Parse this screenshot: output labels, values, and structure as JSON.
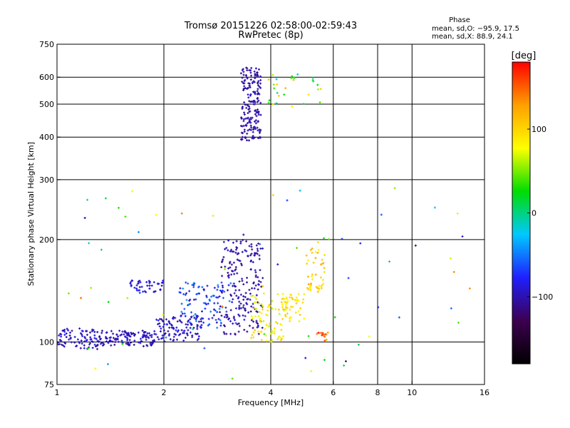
{
  "chart_data": {
    "type": "scatter",
    "title": "Tromsø 20151226 02:58:00-02:59:43",
    "subtitle": "RwPretec (8p)",
    "xlabel": "Frequency [MHz]",
    "ylabel": "Stationary phase Virtual Height [km]",
    "x_scale": "log",
    "y_scale": "log",
    "xlim": [
      1,
      16
    ],
    "ylim": [
      75,
      750
    ],
    "x_ticks": [
      1,
      2,
      4,
      6,
      8,
      10,
      16
    ],
    "x_tick_labels": [
      "1",
      "2",
      "4",
      "6",
      "8",
      "10",
      "16"
    ],
    "y_ticks": [
      75,
      100,
      200,
      300,
      400,
      500,
      600,
      750
    ],
    "y_tick_labels": [
      "75",
      "100",
      "200",
      "300",
      "400",
      "500",
      "600",
      "750"
    ],
    "grid": true,
    "legend": {
      "title": "Phase",
      "lines": [
        "mean, sd,O: −95.9, 17.5",
        "mean, sd,X:  88.9, 24.1"
      ],
      "placement": "top-right"
    },
    "colorbar": {
      "label": "[deg]",
      "ticks": [
        100,
        0,
        -100
      ],
      "tick_labels": [
        "100",
        "0",
        "−100"
      ],
      "range": [
        -180,
        180
      ],
      "colors": [
        "#000000",
        "#3d0050",
        "#1f1fff",
        "#00c8ff",
        "#00dd00",
        "#ffff00",
        "#ffa000",
        "#ff0000"
      ]
    },
    "clusters": [
      {
        "x": [
          1.0,
          1.3
        ],
        "y": [
          95,
          110
        ],
        "phase": [
          -110,
          -80
        ],
        "n": 80
      },
      {
        "x": [
          1.3,
          1.9
        ],
        "y": [
          97,
          108
        ],
        "phase": [
          -110,
          -85
        ],
        "n": 130
      },
      {
        "x": [
          1.6,
          2.0
        ],
        "y": [
          140,
          152
        ],
        "phase": [
          -100,
          -80
        ],
        "n": 45
      },
      {
        "x": [
          1.9,
          2.6
        ],
        "y": [
          100,
          120
        ],
        "phase": [
          -110,
          -80
        ],
        "n": 110
      },
      {
        "x": [
          2.2,
          3.2
        ],
        "y": [
          110,
          150
        ],
        "phase": [
          -105,
          -40
        ],
        "n": 110
      },
      {
        "x": [
          2.9,
          3.8
        ],
        "y": [
          105,
          200
        ],
        "phase": [
          -115,
          -90
        ],
        "n": 200
      },
      {
        "x": [
          3.3,
          3.75
        ],
        "y": [
          390,
          640
        ],
        "phase": [
          -110,
          -95
        ],
        "n": 190
      },
      {
        "x": [
          3.5,
          4.4
        ],
        "y": [
          100,
          140
        ],
        "phase": [
          60,
          110
        ],
        "n": 80
      },
      {
        "x": [
          4.3,
          5.0
        ],
        "y": [
          115,
          140
        ],
        "phase": [
          70,
          110
        ],
        "n": 50
      },
      {
        "x": [
          5.0,
          5.7
        ],
        "y": [
          140,
          190
        ],
        "phase": [
          80,
          130
        ],
        "n": 45
      },
      {
        "x": [
          5.4,
          5.8
        ],
        "y": [
          100,
          108
        ],
        "phase": [
          110,
          170
        ],
        "n": 18
      },
      {
        "x": [
          3.9,
          5.7
        ],
        "y": [
          490,
          620
        ],
        "phase": [
          -20,
          120
        ],
        "n": 30
      },
      {
        "x": [
          1.05,
          15
        ],
        "y": [
          78,
          290
        ],
        "phase": [
          -120,
          150
        ],
        "n": 70
      }
    ]
  }
}
